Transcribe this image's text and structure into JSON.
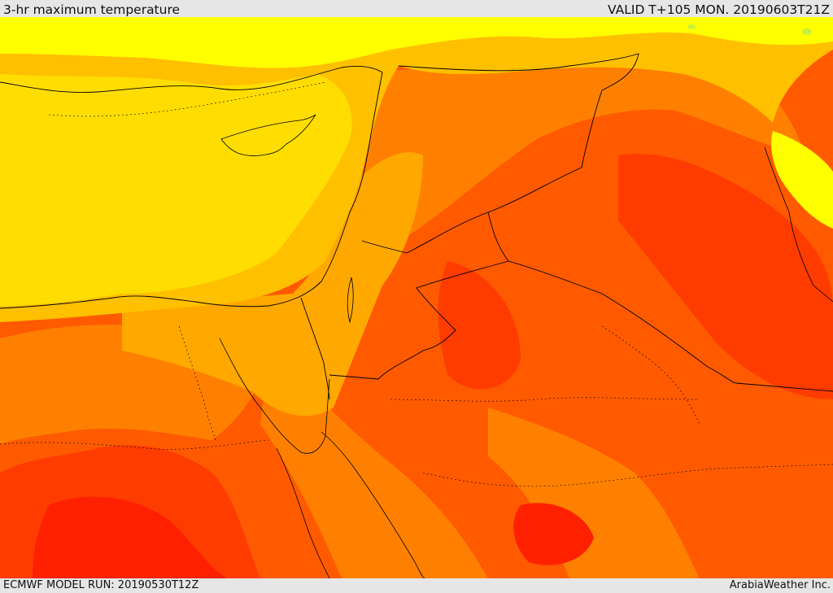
{
  "header": {
    "title": "3-hr maximum temperature",
    "valid": "VALID T+105 MON. 20190603T21Z"
  },
  "footer": {
    "model_run": "ECMWF MODEL RUN: 20190530T12Z",
    "credit": "ArabiaWeather Inc."
  },
  "map": {
    "field": "3-hr maximum temperature",
    "colors": {
      "light_green": "#c7f03a",
      "yellow_bright": "#ffff00",
      "yellow": "#ffdd00",
      "gold": "#ffc000",
      "orange_light": "#ffa800",
      "orange": "#ff8000",
      "orange_dark": "#ff5a00",
      "red_orange": "#ff3c00",
      "red": "#ff2000",
      "borders": "#000000"
    }
  }
}
